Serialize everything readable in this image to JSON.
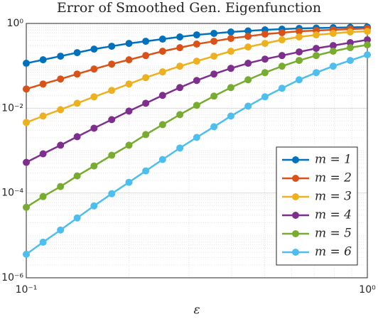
{
  "chart_data": {
    "type": "line",
    "title": "Error of Smoothed Gen. Eigenfunction",
    "xlabel": "ε",
    "x": [
      0.1,
      0.112,
      0.126,
      0.141,
      0.158,
      0.178,
      0.2,
      0.224,
      0.251,
      0.282,
      0.316,
      0.355,
      0.398,
      0.447,
      0.501,
      0.562,
      0.631,
      0.708,
      0.794,
      0.891,
      1
    ],
    "series": [
      {
        "name": "m = 1",
        "color": "#0072BD",
        "values": [
          0.115,
          0.139,
          0.169,
          0.205,
          0.248,
          0.29,
          0.338,
          0.38,
          0.427,
          0.48,
          0.538,
          0.582,
          0.629,
          0.667,
          0.706,
          0.734,
          0.762,
          0.778,
          0.793,
          0.809,
          0.824
        ]
      },
      {
        "name": "m = 2",
        "color": "#D95319",
        "values": [
          0.0284,
          0.0373,
          0.0489,
          0.0641,
          0.084,
          0.11,
          0.139,
          0.175,
          0.221,
          0.268,
          0.326,
          0.38,
          0.444,
          0.498,
          0.56,
          0.605,
          0.653,
          0.679,
          0.706,
          0.734,
          0.762
        ]
      },
      {
        "name": "m = 3",
        "color": "#EDB120",
        "values": [
          0.00461,
          0.00653,
          0.00925,
          0.0131,
          0.0186,
          0.0263,
          0.0373,
          0.0528,
          0.072,
          0.0981,
          0.129,
          0.169,
          0.221,
          0.279,
          0.338,
          0.411,
          0.48,
          0.538,
          0.582,
          0.629,
          0.653
        ]
      },
      {
        "name": "m = 4",
        "color": "#7E2F8E",
        "values": [
          0.000528,
          0.00084,
          0.00134,
          0.00213,
          0.00338,
          0.00538,
          0.00857,
          0.0131,
          0.0201,
          0.0307,
          0.0452,
          0.0641,
          0.0873,
          0.115,
          0.144,
          0.175,
          0.213,
          0.258,
          0.301,
          0.352,
          0.411
        ]
      },
      {
        "name": "m = 5",
        "color": "#77AC30",
        "values": [
          4.61e-05,
          8.24e-05,
          0.000142,
          0.000253,
          0.000435,
          0.000778,
          0.00134,
          0.00239,
          0.0041,
          0.00706,
          0.0117,
          0.0193,
          0.0307,
          0.047,
          0.0692,
          0.0981,
          0.134,
          0.175,
          0.221,
          0.268,
          0.313
        ]
      },
      {
        "name": "m = 6",
        "color": "#4DBEEE",
        "values": [
          3.59e-06,
          6.92e-06,
          1.34e-05,
          2.58e-05,
          4.98e-05,
          9.62e-05,
          0.000179,
          0.000332,
          0.000617,
          0.00115,
          0.00205,
          0.00366,
          0.00653,
          0.0112,
          0.0186,
          0.0296,
          0.047,
          0.0692,
          0.0981,
          0.134,
          0.182
        ]
      }
    ],
    "xlim": [
      0.1,
      1
    ],
    "ylim": [
      1e-06,
      1
    ],
    "xticks": [
      {
        "value": 0.1,
        "label": "10⁻¹"
      },
      {
        "value": 1,
        "label": "10⁰"
      }
    ],
    "yticks": [
      {
        "value": 1e-06,
        "label": "10⁻⁶"
      },
      {
        "value": 0.0001,
        "label": "10⁻⁴"
      },
      {
        "value": 0.01,
        "label": "10⁻²"
      },
      {
        "value": 1,
        "label": "10⁰"
      }
    ],
    "log_x": true,
    "log_y": true,
    "grid": true,
    "minor_grid": true,
    "legend": "lower right"
  }
}
